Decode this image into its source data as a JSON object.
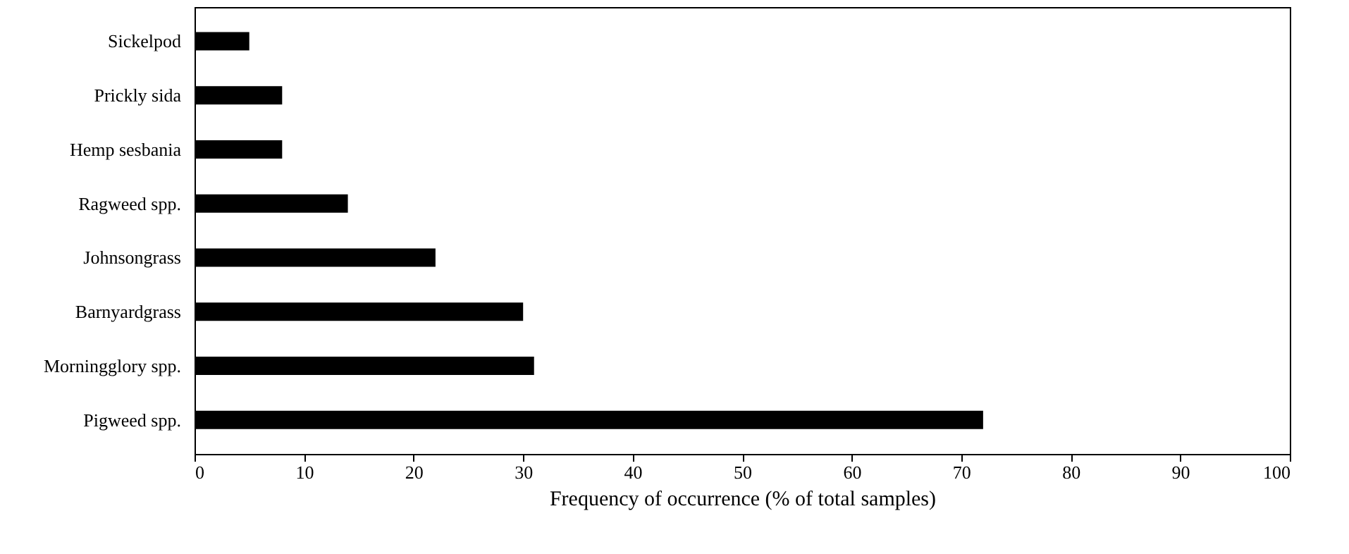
{
  "chart_data": {
    "type": "bar",
    "orientation": "horizontal",
    "xlabel": "Frequency of occurrence (% of total samples)",
    "categories": [
      "Sickelpod",
      "Prickly sida",
      "Hemp sesbania",
      "Ragweed spp.",
      "Johnsongrass",
      "Barnyardgrass",
      "Morningglory spp.",
      "Pigweed spp."
    ],
    "values": [
      5,
      8,
      8,
      14,
      22,
      30,
      31,
      72
    ],
    "color": "#000000",
    "xlim": [
      0,
      100
    ],
    "xticks": [
      0,
      10,
      20,
      30,
      40,
      50,
      60,
      70,
      80,
      90,
      100
    ],
    "grid": false
  }
}
